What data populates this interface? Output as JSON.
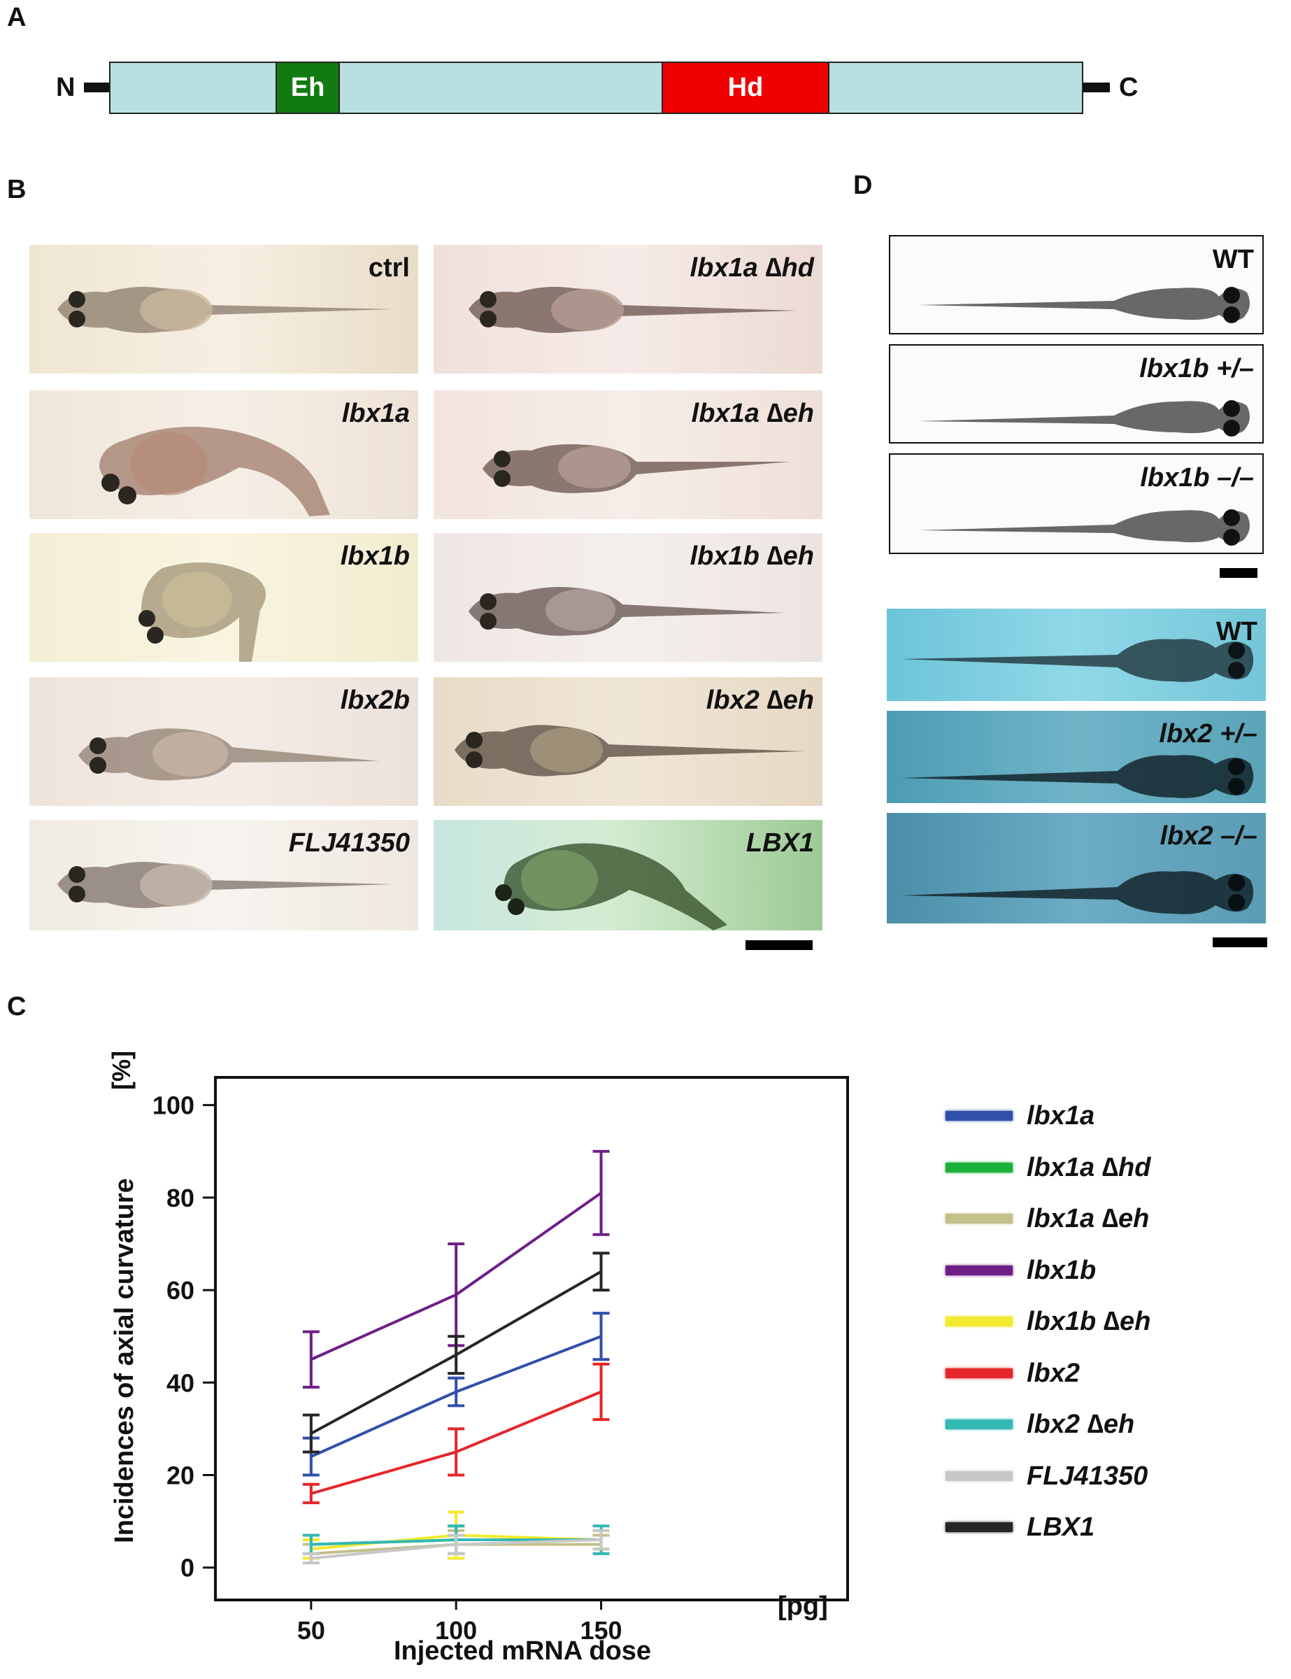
{
  "panel_letters": {
    "a": "A",
    "b": "B",
    "c": "C",
    "d": "D"
  },
  "protein": {
    "n_label": "N",
    "c_label": "C",
    "eh_label": "Eh",
    "hd_label": "Hd",
    "colors": {
      "body": "#b9dfe2",
      "eh": "#127a12",
      "hd": "#f00000"
    }
  },
  "panel_b": {
    "left_labels": [
      "ctrl",
      "lbx1a",
      "lbx1b",
      "lbx2b",
      "FLJ41350"
    ],
    "right_labels": [
      "lbx1a ∆hd",
      "lbx1a ∆eh",
      "lbx1b ∆eh",
      "lbx2 ∆eh",
      "LBX1"
    ]
  },
  "panel_d": {
    "top_labels": [
      "WT",
      "lbx1b +/–",
      "lbx1b –/–"
    ],
    "bottom_labels": [
      "WT",
      "lbx2 +/–",
      "lbx2 –/–"
    ]
  },
  "chart_data": {
    "type": "line",
    "xlabel": "Injected mRNA dose",
    "x_unit": "[pg]",
    "ylabel": "Incidences of axial curvature",
    "y_unit": "[%]",
    "x": [
      50,
      100,
      150
    ],
    "x_tick_labels": [
      "50",
      "100",
      "150"
    ],
    "xlim": [
      17,
      235
    ],
    "ylim": [
      -7,
      106
    ],
    "y_ticks": [
      0,
      20,
      40,
      60,
      80,
      100
    ],
    "grid": false,
    "legend_position": "right",
    "series": [
      {
        "name": "lbx1a",
        "color": "#2f4fa8",
        "values": [
          24,
          38,
          50
        ],
        "errors": [
          4,
          3,
          5
        ]
      },
      {
        "name": "lbx1a ∆hd",
        "color": "#1bb13b",
        "values": [
          5,
          6,
          6
        ],
        "errors": [
          2,
          3,
          2
        ]
      },
      {
        "name": "lbx1a ∆eh",
        "color": "#c3c08a",
        "values": [
          3,
          5,
          5
        ],
        "errors": [
          2,
          3,
          2
        ]
      },
      {
        "name": "lbx1b",
        "color": "#6e1f86",
        "values": [
          45,
          59,
          81
        ],
        "errors": [
          6,
          11,
          9
        ]
      },
      {
        "name": "lbx1b ∆eh",
        "color": "#f2ea2e",
        "values": [
          4,
          7,
          6
        ],
        "errors": [
          2,
          5,
          2
        ]
      },
      {
        "name": "lbx2",
        "color": "#e4262a",
        "values": [
          16,
          25,
          38
        ],
        "errors": [
          2,
          5,
          6
        ]
      },
      {
        "name": "lbx2 ∆eh",
        "color": "#34b8b4",
        "values": [
          5,
          6,
          6
        ],
        "errors": [
          2,
          3,
          3
        ]
      },
      {
        "name": "FLJ41350",
        "color": "#c8c8c8",
        "values": [
          2,
          5,
          6
        ],
        "errors": [
          1,
          2,
          2
        ]
      },
      {
        "name": "LBX1",
        "color": "#262626",
        "values": [
          29,
          46,
          64
        ],
        "errors": [
          4,
          4,
          4
        ]
      }
    ]
  }
}
